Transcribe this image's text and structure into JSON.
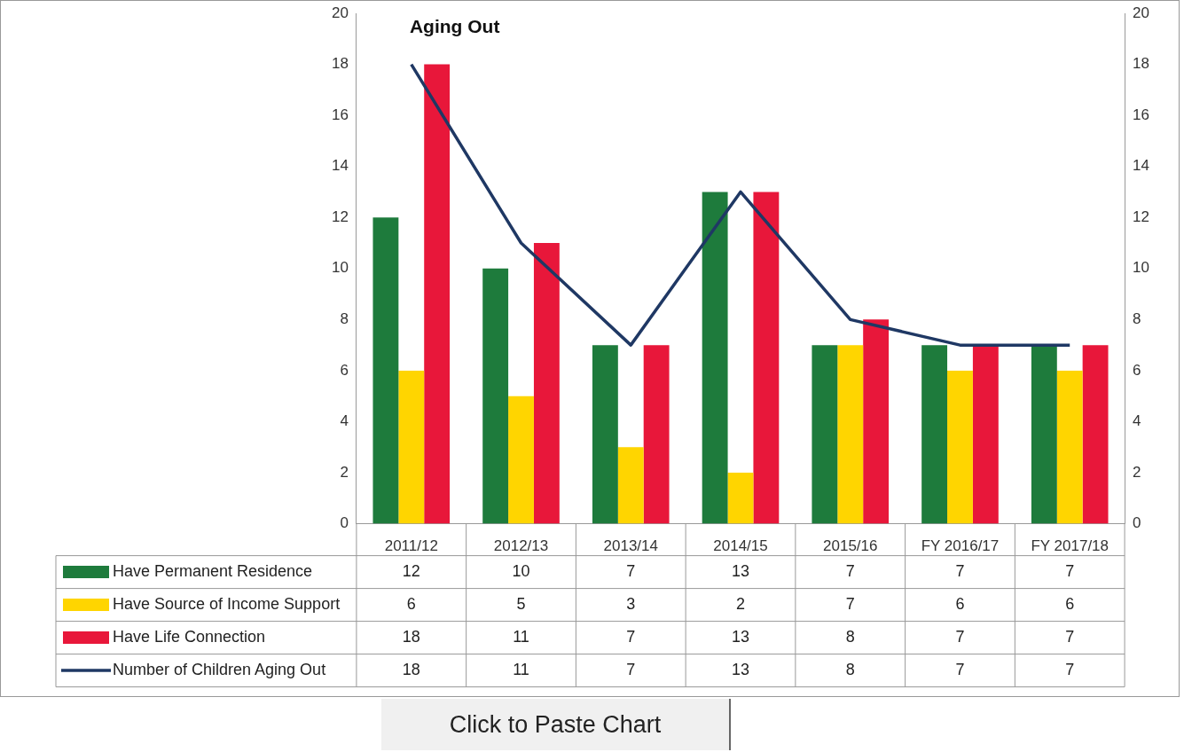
{
  "chart_data": {
    "type": "bar",
    "title": "Aging Out",
    "categories": [
      "2011/12",
      "2012/13",
      "2013/14",
      "2014/15",
      "2015/16",
      "FY 2016/17",
      "FY 2017/18"
    ],
    "series": [
      {
        "name": "Have Permanent Residence",
        "color": "#1e7b3c",
        "values": [
          12,
          10,
          7,
          13,
          7,
          7,
          7
        ]
      },
      {
        "name": "Have Source of Income Support",
        "color": "#ffd500",
        "values": [
          6,
          5,
          3,
          2,
          7,
          6,
          6
        ]
      },
      {
        "name": "Have Life Connection",
        "color": "#e8173a",
        "values": [
          18,
          11,
          7,
          13,
          8,
          7,
          7
        ]
      },
      {
        "name": "Number of Children Aging Out",
        "type": "line",
        "color": "#1f3864",
        "values": [
          18,
          11,
          7,
          13,
          8,
          7,
          7
        ]
      }
    ],
    "ylim": [
      0,
      20
    ],
    "yticks": [
      0,
      2,
      4,
      6,
      8,
      10,
      12,
      14,
      16,
      18,
      20
    ],
    "y2lim": [
      0,
      20
    ],
    "y2ticks": [
      0,
      2,
      4,
      6,
      8,
      10,
      12,
      14,
      16,
      18,
      20
    ],
    "grid": false,
    "legend": "bottom",
    "data_labels": true,
    "marker": "none",
    "annotations": [
      "Click to Paste Chart"
    ]
  }
}
